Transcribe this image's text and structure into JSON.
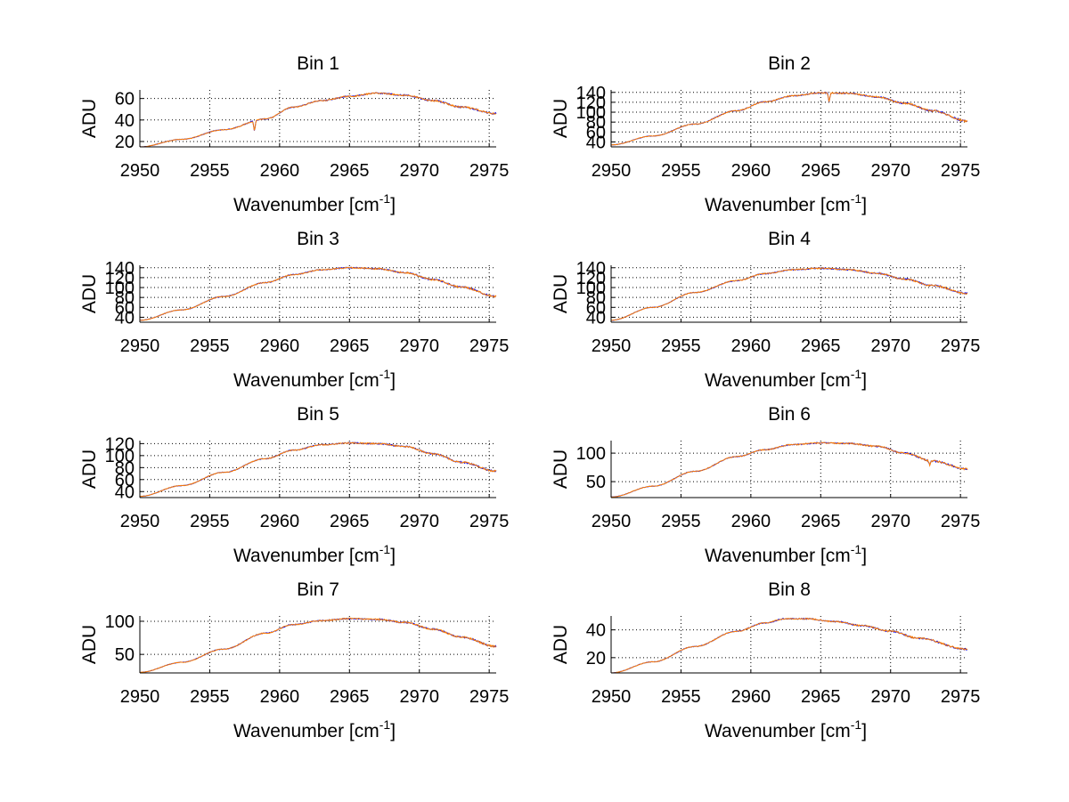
{
  "chart_data": [
    {
      "type": "line",
      "title": "Bin 1",
      "xlabel": "Wavenumber [cm",
      "xlabel_sup": "-1",
      "xlabel_end": "]",
      "ylabel": "ADU",
      "xlim": [
        2950,
        2975.5
      ],
      "ylim": [
        15,
        68
      ],
      "xticks": [
        2950,
        2955,
        2960,
        2965,
        2970,
        2975
      ],
      "yticks": [
        20,
        40,
        60
      ],
      "grid": true,
      "colors": [
        "#ff7f00",
        "#0000ff"
      ],
      "profile": {
        "x": [
          2950,
          2953,
          2956,
          2959,
          2961,
          2963,
          2965,
          2967,
          2969,
          2971,
          2973,
          2975.5
        ],
        "y": [
          15,
          22,
          31,
          41,
          52,
          58,
          62,
          65,
          63,
          58,
          52,
          46
        ]
      },
      "dips": [
        {
          "x": 2958.2,
          "depth": 10
        }
      ]
    },
    {
      "type": "line",
      "title": "Bin 2",
      "xlabel": "Wavenumber [cm",
      "xlabel_sup": "-1",
      "xlabel_end": "]",
      "ylabel": "ADU",
      "xlim": [
        2950,
        2975.5
      ],
      "ylim": [
        30,
        145
      ],
      "xticks": [
        2950,
        2955,
        2960,
        2965,
        2970,
        2975
      ],
      "yticks": [
        40,
        60,
        80,
        100,
        120,
        140
      ],
      "grid": true,
      "colors": [
        "#ff7f00",
        "#0000ff"
      ],
      "profile": {
        "x": [
          2950,
          2953,
          2956,
          2959,
          2961,
          2963,
          2965,
          2967,
          2969,
          2971,
          2973,
          2975.5
        ],
        "y": [
          34,
          52,
          76,
          103,
          121,
          133,
          139,
          138,
          131,
          118,
          103,
          82
        ]
      },
      "dips": [
        {
          "x": 2965.6,
          "depth": 18
        }
      ]
    },
    {
      "type": "line",
      "title": "Bin 3",
      "xlabel": "Wavenumber [cm",
      "xlabel_sup": "-1",
      "xlabel_end": "]",
      "ylabel": "ADU",
      "xlim": [
        2950,
        2975.5
      ],
      "ylim": [
        30,
        145
      ],
      "xticks": [
        2950,
        2955,
        2960,
        2965,
        2970,
        2975
      ],
      "yticks": [
        40,
        60,
        80,
        100,
        120,
        140
      ],
      "grid": true,
      "colors": [
        "#ff7f00",
        "#0000ff"
      ],
      "profile": {
        "x": [
          2950,
          2953,
          2956,
          2959,
          2961,
          2963,
          2965,
          2967,
          2969,
          2971,
          2973,
          2975.5
        ],
        "y": [
          34,
          55,
          82,
          110,
          126,
          136,
          140,
          138,
          130,
          116,
          101,
          82
        ]
      },
      "dips": []
    },
    {
      "type": "line",
      "title": "Bin 4",
      "xlabel": "Wavenumber [cm",
      "xlabel_sup": "-1",
      "xlabel_end": "]",
      "ylabel": "ADU",
      "xlim": [
        2950,
        2975.5
      ],
      "ylim": [
        30,
        145
      ],
      "xticks": [
        2950,
        2955,
        2960,
        2965,
        2970,
        2975
      ],
      "yticks": [
        40,
        60,
        80,
        100,
        120,
        140
      ],
      "grid": true,
      "colors": [
        "#ff7f00",
        "#0000ff"
      ],
      "profile": {
        "x": [
          2950,
          2953,
          2956,
          2959,
          2961,
          2963,
          2965,
          2967,
          2969,
          2971,
          2973,
          2975.5
        ],
        "y": [
          34,
          60,
          90,
          114,
          128,
          136,
          139,
          136,
          129,
          117,
          104,
          88
        ]
      },
      "dips": []
    },
    {
      "type": "line",
      "title": "Bin 5",
      "xlabel": "Wavenumber [cm",
      "xlabel_sup": "-1",
      "xlabel_end": "]",
      "ylabel": "ADU",
      "xlim": [
        2950,
        2975.5
      ],
      "ylim": [
        30,
        125
      ],
      "xticks": [
        2950,
        2955,
        2960,
        2965,
        2970,
        2975
      ],
      "yticks": [
        40,
        60,
        80,
        100,
        120
      ],
      "grid": true,
      "colors": [
        "#ff7f00",
        "#0000ff"
      ],
      "profile": {
        "x": [
          2950,
          2953,
          2956,
          2959,
          2961,
          2963,
          2965,
          2967,
          2969,
          2971,
          2973,
          2975.5
        ],
        "y": [
          32,
          50,
          72,
          95,
          109,
          118,
          121,
          120,
          115,
          103,
          89,
          74
        ]
      },
      "dips": []
    },
    {
      "type": "line",
      "title": "Bin 6",
      "xlabel": "Wavenumber [cm",
      "xlabel_sup": "-1",
      "xlabel_end": "]",
      "ylabel": "ADU",
      "xlim": [
        2950,
        2975.5
      ],
      "ylim": [
        22,
        122
      ],
      "xticks": [
        2950,
        2955,
        2960,
        2965,
        2970,
        2975
      ],
      "yticks": [
        50,
        100
      ],
      "grid": true,
      "colors": [
        "#ff7f00",
        "#0000ff"
      ],
      "profile": {
        "x": [
          2950,
          2953,
          2956,
          2959,
          2961,
          2963,
          2965,
          2967,
          2969,
          2971,
          2973,
          2975.5
        ],
        "y": [
          23,
          42,
          68,
          94,
          106,
          115,
          118,
          117,
          112,
          100,
          86,
          72
        ]
      },
      "dips": [
        {
          "x": 2972.8,
          "depth": 7
        }
      ]
    },
    {
      "type": "line",
      "title": "Bin 7",
      "xlabel": "Wavenumber [cm",
      "xlabel_sup": "-1",
      "xlabel_end": "]",
      "ylabel": "ADU",
      "xlim": [
        2950,
        2975.5
      ],
      "ylim": [
        22,
        108
      ],
      "xticks": [
        2950,
        2955,
        2960,
        2965,
        2970,
        2975
      ],
      "yticks": [
        50,
        100
      ],
      "grid": true,
      "colors": [
        "#ff7f00",
        "#0000ff"
      ],
      "profile": {
        "x": [
          2950,
          2953,
          2956,
          2959,
          2961,
          2963,
          2965,
          2967,
          2969,
          2971,
          2973,
          2975.5
        ],
        "y": [
          23,
          38,
          58,
          82,
          95,
          101,
          104,
          103,
          98,
          88,
          76,
          62
        ]
      },
      "dips": []
    },
    {
      "type": "line",
      "title": "Bin 8",
      "xlabel": "Wavenumber [cm",
      "xlabel_sup": "-1",
      "xlabel_end": "]",
      "ylabel": "ADU",
      "xlim": [
        2950,
        2975.5
      ],
      "ylim": [
        9,
        50
      ],
      "xticks": [
        2950,
        2955,
        2960,
        2965,
        2970,
        2975
      ],
      "yticks": [
        20,
        40
      ],
      "grid": true,
      "colors": [
        "#ff7f00",
        "#0000ff"
      ],
      "profile": {
        "x": [
          2950,
          2953,
          2956,
          2959,
          2961,
          2962.5,
          2964,
          2966,
          2968,
          2970,
          2972,
          2975.5
        ],
        "y": [
          9,
          17,
          28,
          39,
          45,
          48,
          48,
          46,
          43,
          39,
          34,
          26
        ]
      },
      "dips": []
    }
  ]
}
